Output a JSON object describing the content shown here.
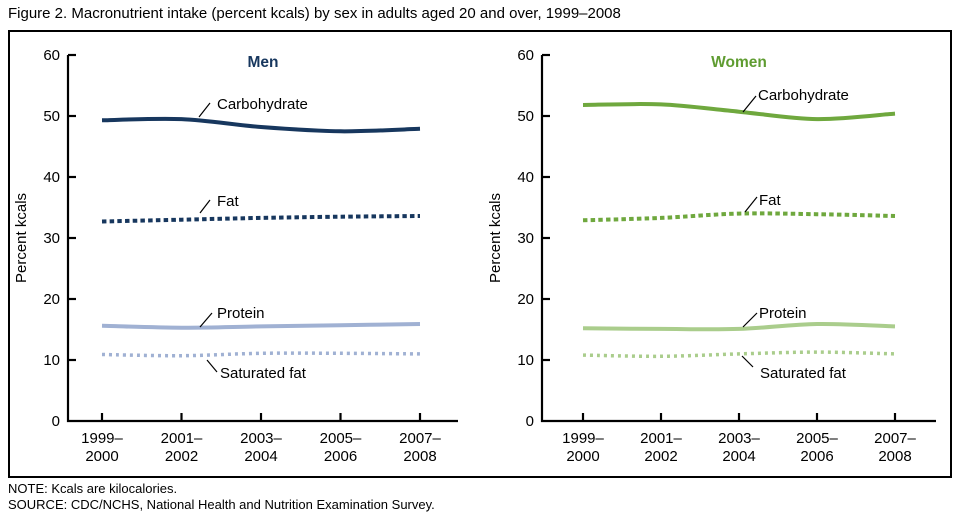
{
  "figure_title": "Figure 2. Macronutrient intake (percent kcals) by sex in adults aged 20 and over, 1999–2008",
  "note": "NOTE: Kcals are kilocalories.",
  "source": "SOURCE: CDC/NCHS, National Health and Nutrition Examination Survey.",
  "colors": {
    "men_dark": "#17375e",
    "men_light": "#a0b1d3",
    "women_dark": "#6fa83e",
    "women_light": "#aacd8c",
    "women_title": "#5f9c31",
    "axis": "#000000"
  },
  "chart_data": [
    {
      "type": "line",
      "panel_title": "Men",
      "title_color": "#17375e",
      "ylabel": "Percent kcals",
      "ylim": [
        0,
        60
      ],
      "yticks": [
        0,
        10,
        20,
        30,
        40,
        50,
        60
      ],
      "grid": "off",
      "legend": "inline-callout-labels",
      "categories": [
        "1999–2000",
        "2001–2002",
        "2003–2004",
        "2005–2006",
        "2007–2008"
      ],
      "series": [
        {
          "name": "Carbohydrate",
          "dash": "solid",
          "color": "#17375e",
          "values": [
            49.3,
            49.5,
            48.2,
            47.5,
            47.9
          ]
        },
        {
          "name": "Fat",
          "dash": "dashed",
          "color": "#17375e",
          "values": [
            32.7,
            33.0,
            33.3,
            33.5,
            33.6
          ]
        },
        {
          "name": "Protein",
          "dash": "solid",
          "color": "#a0b1d3",
          "values": [
            15.6,
            15.3,
            15.5,
            15.7,
            15.9
          ]
        },
        {
          "name": "Saturated fat",
          "dash": "dotted",
          "color": "#a0b1d3",
          "values": [
            10.9,
            10.7,
            11.1,
            11.1,
            11.0
          ]
        }
      ]
    },
    {
      "type": "line",
      "panel_title": "Women",
      "title_color": "#5f9c31",
      "ylabel": "Percent kcals",
      "ylim": [
        0,
        60
      ],
      "yticks": [
        0,
        10,
        20,
        30,
        40,
        50,
        60
      ],
      "grid": "off",
      "legend": "inline-callout-labels",
      "categories": [
        "1999–2000",
        "2001–2002",
        "2003–2004",
        "2005–2006",
        "2007–2008"
      ],
      "series": [
        {
          "name": "Carbohydrate",
          "dash": "solid",
          "color": "#6fa83e",
          "values": [
            51.8,
            51.9,
            50.7,
            49.5,
            50.4
          ]
        },
        {
          "name": "Fat",
          "dash": "dashed",
          "color": "#6fa83e",
          "values": [
            32.9,
            33.3,
            34.0,
            33.9,
            33.6
          ]
        },
        {
          "name": "Protein",
          "dash": "solid",
          "color": "#aacd8c",
          "values": [
            15.2,
            15.1,
            15.1,
            15.9,
            15.5
          ]
        },
        {
          "name": "Saturated fat",
          "dash": "dotted",
          "color": "#aacd8c",
          "values": [
            10.8,
            10.6,
            11.0,
            11.3,
            11.0
          ]
        }
      ]
    }
  ]
}
